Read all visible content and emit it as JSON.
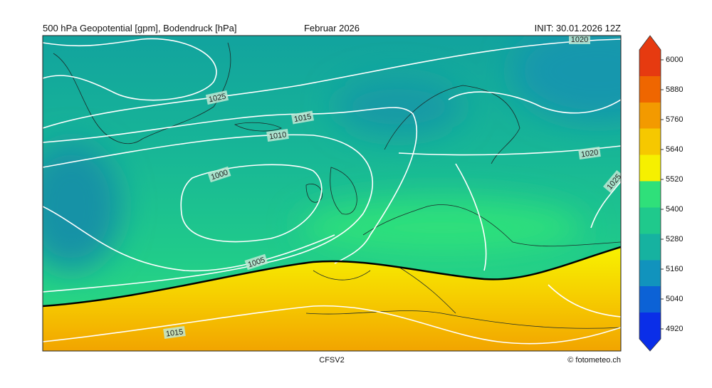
{
  "header": {
    "left": "500 hPa Geopotential [gpm], Bodendruck [hPa]",
    "center": "Februar 2026",
    "right": "INIT: 30.01.2026 12Z"
  },
  "footer": {
    "center": "CFSV2",
    "right": "© fotometeo.ch"
  },
  "map": {
    "contour_labels": [
      1020,
      1025,
      1015,
      1010,
      1000,
      1020,
      1025,
      1005,
      1015
    ]
  },
  "colorbar": {
    "lim": [
      4880,
      6040
    ],
    "ticks": [
      4920,
      5040,
      5160,
      5280,
      5400,
      5520,
      5640,
      5760,
      5880,
      6000
    ],
    "colors": [
      "#0a2ee8",
      "#0c62d6",
      "#1193bd",
      "#16b2a0",
      "#1fc98c",
      "#2fe07a",
      "#f6f000",
      "#f6c800",
      "#f39a00",
      "#ef6600",
      "#e63a10"
    ]
  }
}
